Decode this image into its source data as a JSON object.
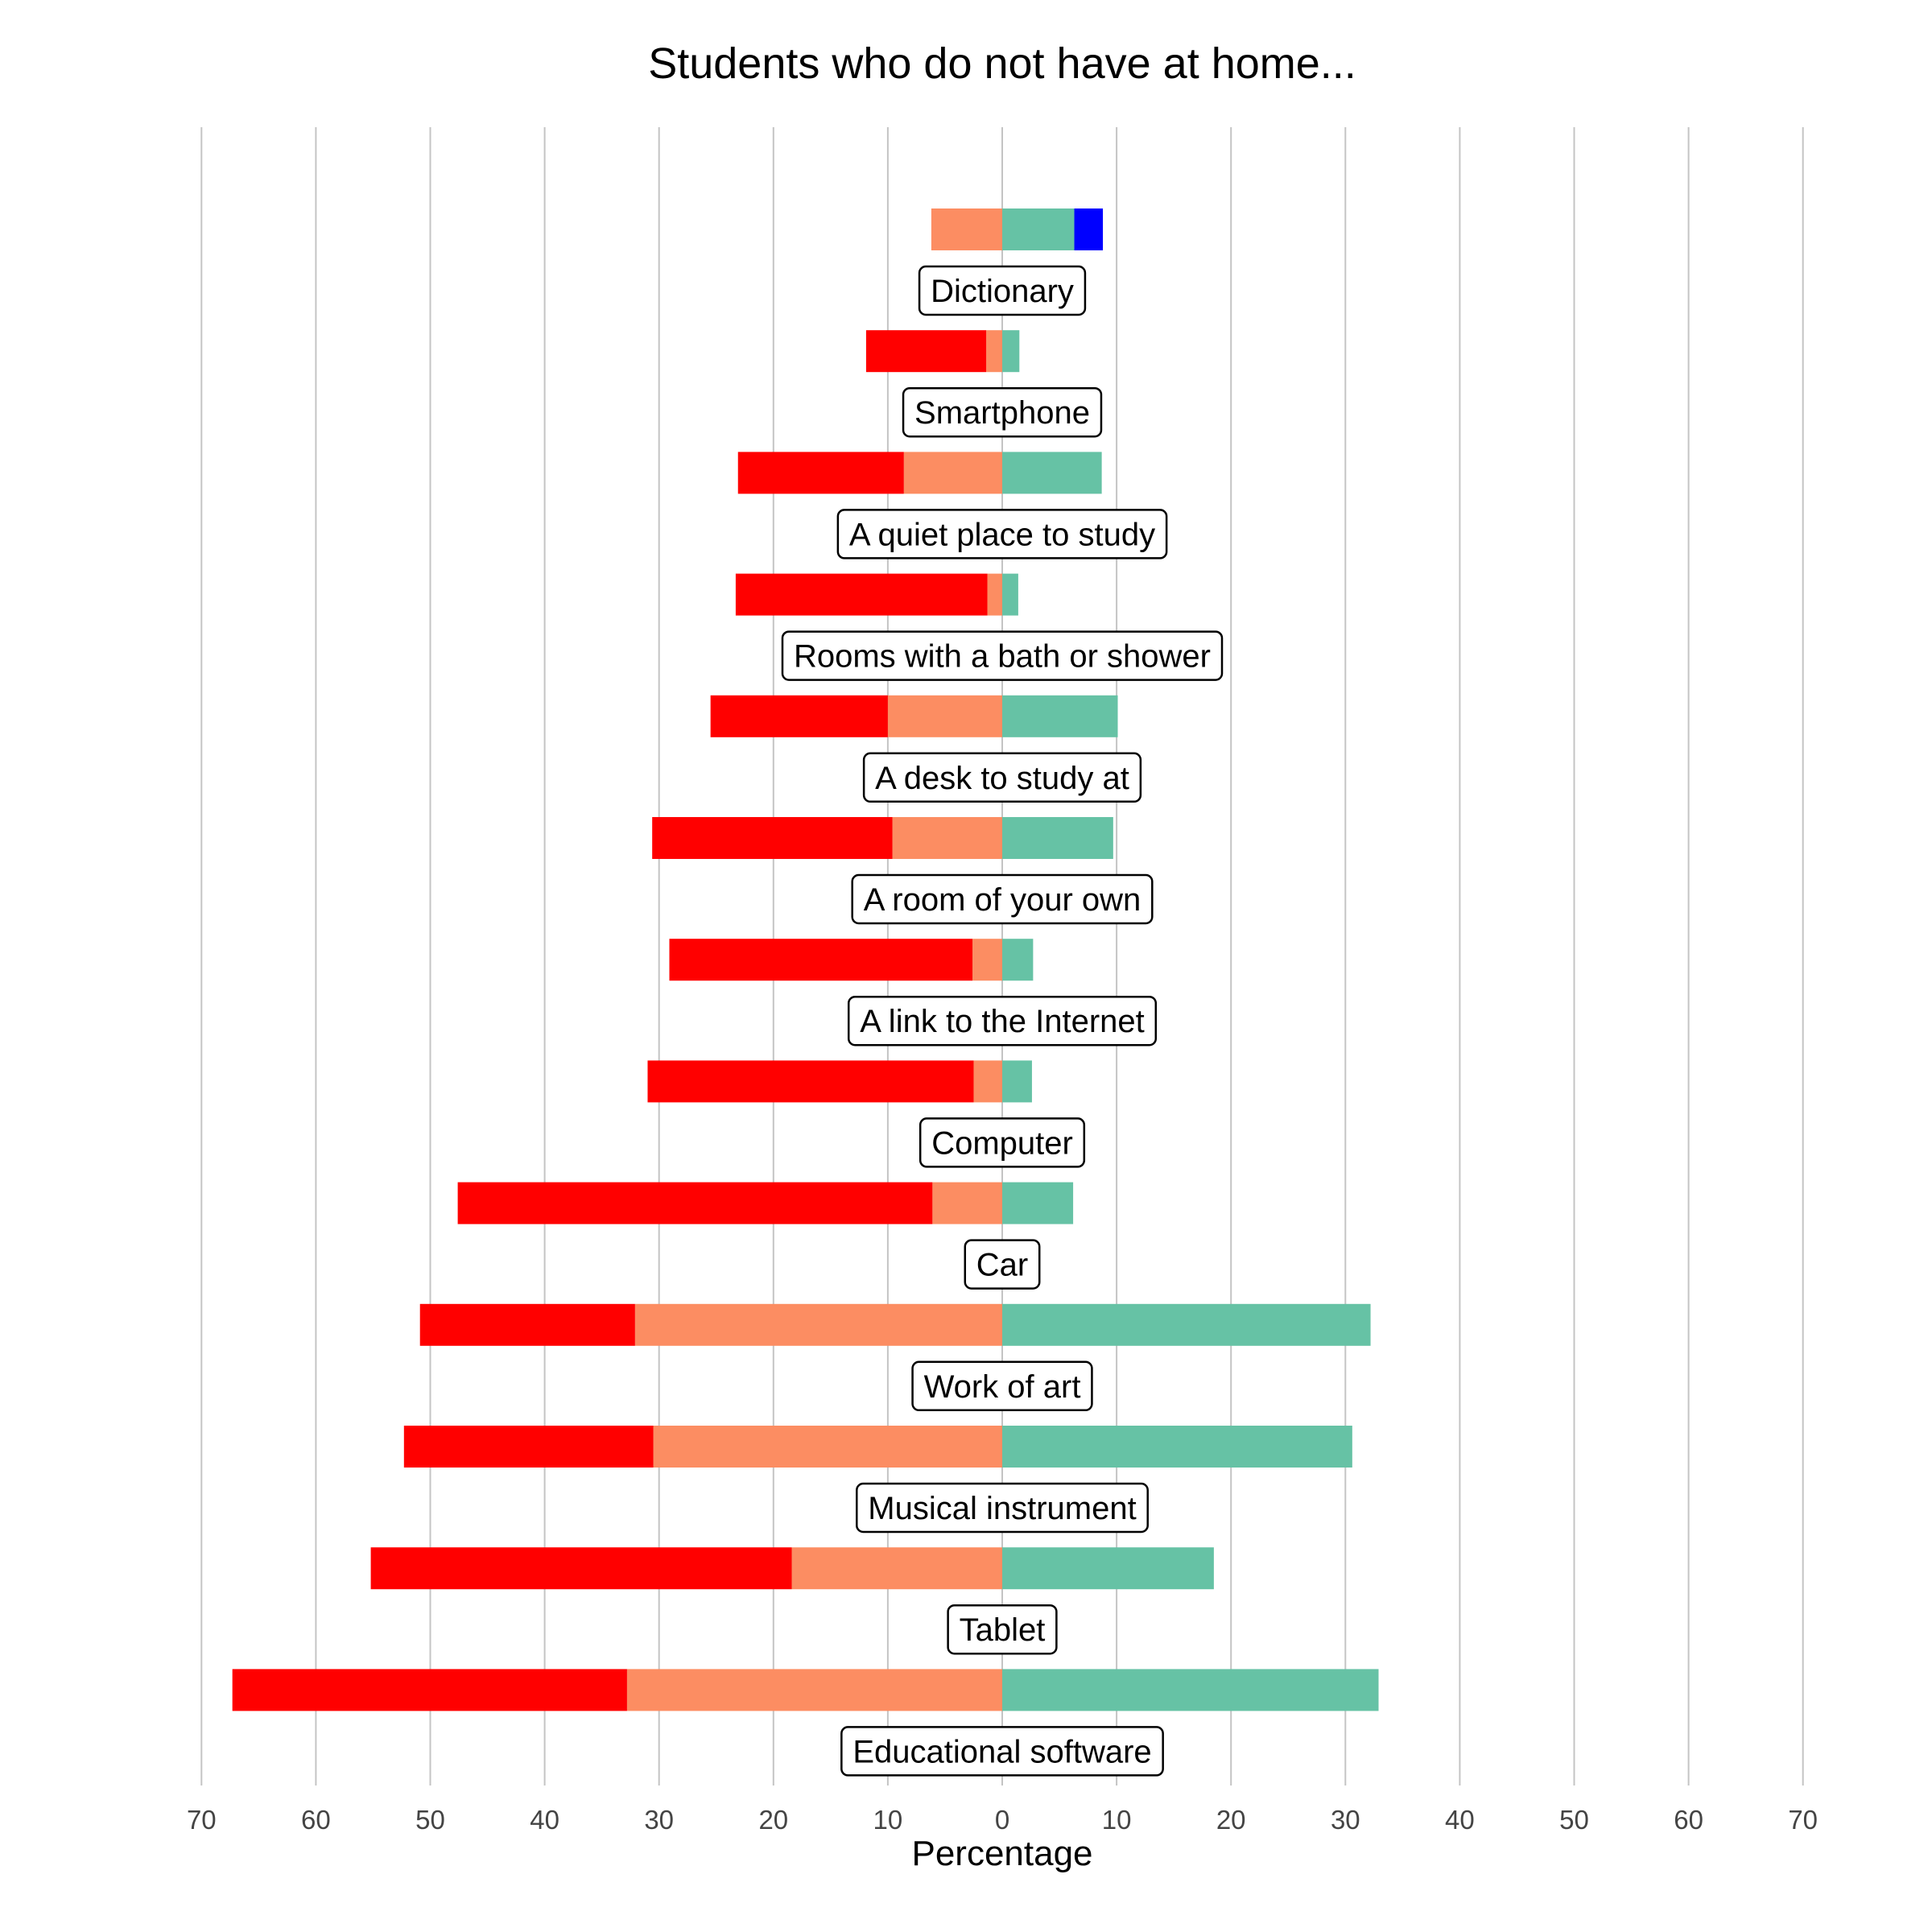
{
  "chart_data": {
    "type": "bar",
    "orientation": "horizontal-diverging",
    "title": "Students who do not have at home...",
    "xlabel": "Percentage",
    "xlim": [
      -70,
      70
    ],
    "xticks": [
      -70,
      -60,
      -50,
      -40,
      -30,
      -20,
      -10,
      0,
      10,
      20,
      30,
      40,
      50,
      60,
      70
    ],
    "xtick_labels": [
      "70",
      "60",
      "50",
      "40",
      "30",
      "20",
      "10",
      "0",
      "10",
      "20",
      "30",
      "40",
      "50",
      "60",
      "70"
    ],
    "grid": "vertical",
    "categories": [
      "Dictionary",
      "Smartphone",
      "A quiet place to study",
      "Rooms with a bath or shower",
      "A desk to study at",
      "A room of your own",
      "A link to the Internet",
      "Computer",
      "Car",
      "Work of art",
      "Musical instrument",
      "Tablet",
      "Educational software"
    ],
    "series": [
      {
        "color": "#ff0000",
        "side": "left-outer",
        "values": [
          0,
          10.5,
          14.5,
          22.0,
          15.5,
          21.0,
          26.5,
          28.5,
          41.5,
          18.8,
          21.8,
          36.8,
          34.5
        ]
      },
      {
        "color": "#fc8d62",
        "side": "left-inner",
        "values": [
          6.2,
          1.4,
          8.6,
          1.3,
          10.0,
          9.6,
          2.6,
          2.5,
          6.1,
          32.1,
          30.5,
          18.4,
          32.8
        ]
      },
      {
        "color": "#66c2a5",
        "side": "right-inner",
        "values": [
          6.3,
          1.5,
          8.7,
          1.4,
          10.1,
          9.7,
          2.7,
          2.6,
          6.2,
          32.2,
          30.6,
          18.5,
          32.9
        ]
      },
      {
        "color": "#0000ff",
        "side": "right-outer",
        "values": [
          2.5,
          0,
          0,
          0,
          0,
          0,
          0,
          0,
          0,
          0,
          0,
          0,
          0
        ]
      }
    ]
  }
}
